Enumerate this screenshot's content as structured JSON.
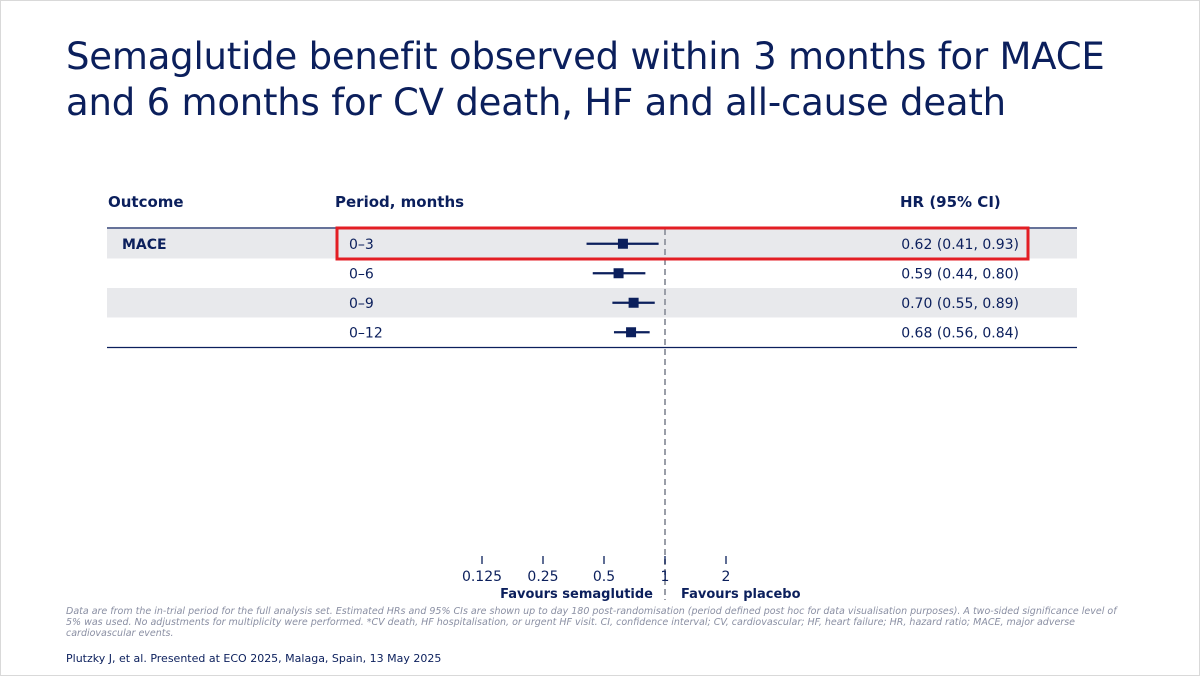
{
  "title": "Semaglutide benefit observed within 3 months for MACE and 6 months for CV death, HF and all-cause death",
  "chart_data": {
    "type": "forest",
    "scale": "log2",
    "reference_line": 1,
    "xticks": [
      0.125,
      0.25,
      0.5,
      1,
      2
    ],
    "xtick_labels": [
      "0.125",
      "0.25",
      "0.5",
      "1",
      "2"
    ],
    "favours_left": "Favours semaglutide",
    "favours_right": "Favours placebo",
    "columns": {
      "outcome": "Outcome",
      "period": "Period, months",
      "hr": "HR (95% CI)"
    },
    "rows": [
      {
        "outcome": "MACE",
        "period": "0–3",
        "hr": 0.62,
        "lo": 0.41,
        "hi": 0.93,
        "hr_text": "0.62 (0.41, 0.93)",
        "highlighted": true,
        "shaded": true
      },
      {
        "outcome": "",
        "period": "0–6",
        "hr": 0.59,
        "lo": 0.44,
        "hi": 0.8,
        "hr_text": "0.59 (0.44, 0.80)",
        "highlighted": false,
        "shaded": false
      },
      {
        "outcome": "",
        "period": "0–9",
        "hr": 0.7,
        "lo": 0.55,
        "hi": 0.89,
        "hr_text": "0.70 (0.55, 0.89)",
        "highlighted": false,
        "shaded": true
      },
      {
        "outcome": "",
        "period": "0–12",
        "hr": 0.68,
        "lo": 0.56,
        "hi": 0.84,
        "hr_text": "0.68 (0.56, 0.84)",
        "highlighted": false,
        "shaded": false
      }
    ]
  },
  "footnote": "Data are from the in-trial period for the full analysis set. Estimated HRs and 95% CIs are shown up to day 180 post-randomisation (period defined post hoc for data visualisation purposes). A two-sided significance level of 5% was used. No adjustments for multiplicity were performed. *CV death, HF hospitalisation, or urgent HF visit. CI, confidence interval; CV, cardiovascular; HF, heart failure; HR, hazard ratio; MACE, major adverse cardiovascular events.",
  "citation": "Plutzky J, et al. Presented at ECO 2025, Malaga, Spain, 13 May 2025",
  "colors": {
    "navy": "#0b1f5c",
    "shade": "#e8e9ec",
    "highlight": "#e31e24",
    "refline": "#9a9ea8"
  }
}
